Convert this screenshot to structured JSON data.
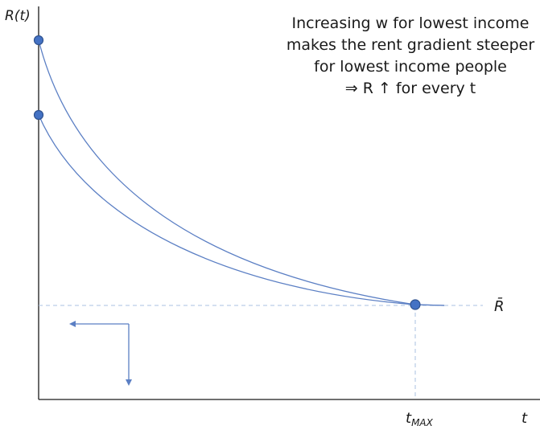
{
  "labels": {
    "y_axis": "R(t)",
    "x_axis": "t",
    "r_bar": "R̄",
    "t_max_main": "t",
    "t_max_sub": "MAX"
  },
  "annotation": {
    "line1": "Increasing w for lowest income",
    "line2": "makes the rent gradient steeper",
    "line3": "for lowest income people",
    "line4": "⇒ R ↑ for every t"
  },
  "colors": {
    "curve": "#5b7fc4",
    "dashed": "#a9c2e0",
    "dot_fill": "#4472c4",
    "dot_stroke": "#2f528f",
    "axis": "#1a1a1a"
  }
}
